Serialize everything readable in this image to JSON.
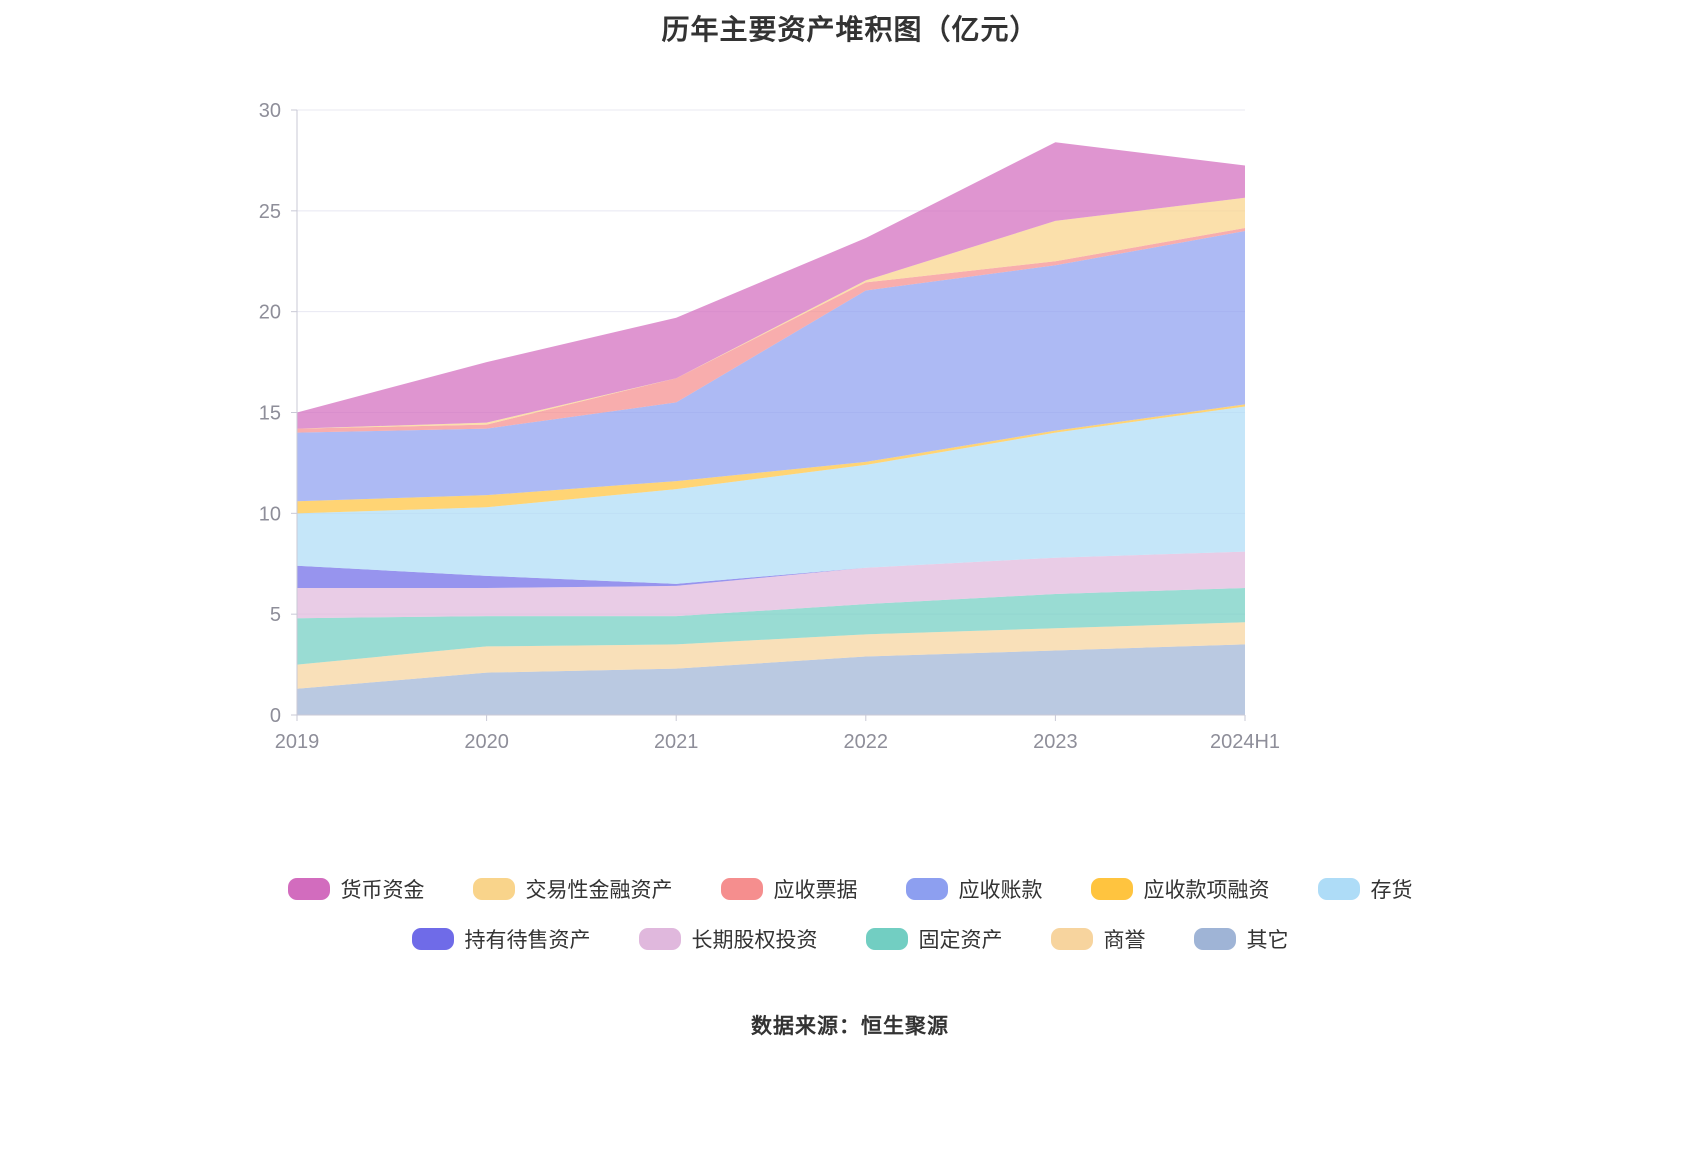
{
  "title": "历年主要资产堆积图（亿元）",
  "source": "数据来源：恒生聚源",
  "chart_data": {
    "type": "area",
    "stacked": true,
    "title": "历年主要资产堆积图（亿元）",
    "x": [
      "2019",
      "2020",
      "2021",
      "2022",
      "2023",
      "2024H1"
    ],
    "ylim": [
      0,
      30
    ],
    "yticks": [
      0,
      5,
      10,
      15,
      20,
      25,
      30
    ],
    "grid": true,
    "legend_position": "bottom",
    "axis_color": "#C9C9D6",
    "grid_color": "#E8E8F2",
    "tick_label_color": "#8E8E99",
    "series": [
      {
        "name": "货币资金",
        "color": "#D26CBE",
        "values": [
          0.8,
          3.0,
          3.0,
          2.1,
          3.9,
          1.6
        ]
      },
      {
        "name": "交易性金融资产",
        "color": "#F9D48B",
        "values": [
          0.0,
          0.1,
          0.0,
          0.1,
          2.0,
          1.5
        ]
      },
      {
        "name": "应收票据",
        "color": "#F58E8E",
        "values": [
          0.2,
          0.2,
          1.2,
          0.4,
          0.2,
          0.15
        ]
      },
      {
        "name": "应收账款",
        "color": "#8D9FF0",
        "values": [
          3.4,
          3.3,
          3.9,
          8.5,
          8.2,
          8.6
        ]
      },
      {
        "name": "应收款项融资",
        "color": "#FFC43F",
        "values": [
          0.6,
          0.6,
          0.4,
          0.15,
          0.1,
          0.1
        ]
      },
      {
        "name": "存货",
        "color": "#AEDCF7",
        "values": [
          2.6,
          3.4,
          4.7,
          5.1,
          6.2,
          7.2
        ]
      },
      {
        "name": "持有待售资产",
        "color": "#6F6BE8",
        "values": [
          1.1,
          0.6,
          0.1,
          0.0,
          0.0,
          0.0
        ]
      },
      {
        "name": "长期股权投资",
        "color": "#E0B8DD",
        "values": [
          1.5,
          1.4,
          1.5,
          1.8,
          1.8,
          1.8
        ]
      },
      {
        "name": "固定资产",
        "color": "#72CEC2",
        "values": [
          2.3,
          1.5,
          1.4,
          1.5,
          1.7,
          1.7
        ]
      },
      {
        "name": "商誉",
        "color": "#F7D49E",
        "values": [
          1.2,
          1.3,
          1.2,
          1.1,
          1.1,
          1.1
        ]
      },
      {
        "name": "其它",
        "color": "#9FB4D6",
        "values": [
          1.3,
          2.1,
          2.3,
          2.9,
          3.2,
          3.5
        ]
      }
    ],
    "stack_order_bottom_to_top": [
      "其它",
      "商誉",
      "固定资产",
      "长期股权投资",
      "持有待售资产",
      "存货",
      "应收款项融资",
      "应收账款",
      "应收票据",
      "交易性金融资产",
      "货币资金"
    ],
    "legend_rows": [
      [
        "货币资金",
        "交易性金融资产",
        "应收票据",
        "应收账款",
        "应收款项融资",
        "存货"
      ],
      [
        "持有待售资产",
        "长期股权投资",
        "固定资产",
        "商誉",
        "其它"
      ]
    ]
  }
}
